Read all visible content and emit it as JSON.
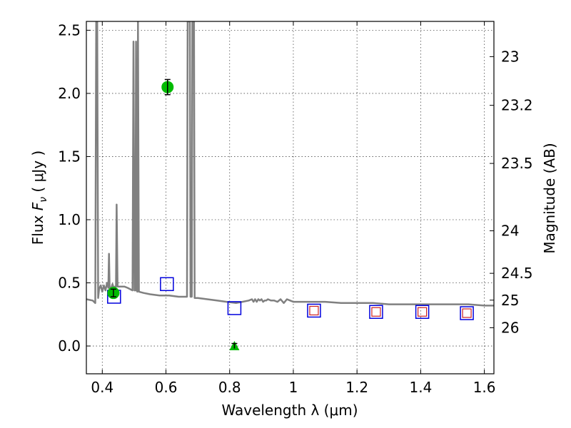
{
  "chart_data": {
    "type": "scatter",
    "title": "",
    "xlabel": "Wavelength  λ (μm)",
    "ylabel": "Flux  F_ν  ( μJy )",
    "ylabel_parts": {
      "pre": "Flux  ",
      "sym": "F",
      "sub": "ν",
      "post": "  ( μJy )"
    },
    "ylabel_right": "Magnitude (AB)",
    "xlim": [
      0.35,
      1.63
    ],
    "ylim": [
      -0.22,
      2.57
    ],
    "grid": true,
    "x_ticks": [
      0.4,
      0.6,
      0.8,
      1.0,
      1.2,
      1.4,
      1.6
    ],
    "x_tick_labels": [
      "0.4",
      "0.6",
      "0.8",
      "1",
      "1.2",
      "1.4",
      "1.6"
    ],
    "y_ticks": [
      0.0,
      0.5,
      1.0,
      1.5,
      2.0,
      2.5
    ],
    "y_tick_labels": [
      "0.0",
      "0.5",
      "1.0",
      "1.5",
      "2.0",
      "2.5"
    ],
    "mag_ticks": [
      23,
      23.2,
      23.5,
      24,
      24.5,
      25,
      26
    ],
    "mag_tick_labels": [
      "23",
      "23.2",
      "23.5",
      "24",
      "24.5",
      "25",
      "26"
    ],
    "colors": {
      "model": "#808080",
      "detection": "#00bb00",
      "blue_box": "#0000dd",
      "red_box": "#cc2020",
      "errorbar": "#000000"
    },
    "series": [
      {
        "kind": "model_sed",
        "points": [
          [
            0.35,
            0.37
          ],
          [
            0.37,
            0.36
          ],
          [
            0.378,
            0.34
          ],
          [
            0.381,
            2.57
          ],
          [
            0.384,
            2.57
          ],
          [
            0.387,
            0.38
          ],
          [
            0.39,
            0.45
          ],
          [
            0.395,
            0.48
          ],
          [
            0.4,
            0.43
          ],
          [
            0.405,
            0.48
          ],
          [
            0.41,
            0.44
          ],
          [
            0.415,
            0.5
          ],
          [
            0.419,
            0.46
          ],
          [
            0.421,
            0.73
          ],
          [
            0.423,
            0.46
          ],
          [
            0.428,
            0.46
          ],
          [
            0.432,
            0.49
          ],
          [
            0.436,
            0.46
          ],
          [
            0.44,
            0.47
          ],
          [
            0.443,
            0.47
          ],
          [
            0.445,
            1.12
          ],
          [
            0.448,
            0.47
          ],
          [
            0.46,
            0.47
          ],
          [
            0.47,
            0.47
          ],
          [
            0.48,
            0.46
          ],
          [
            0.495,
            0.44
          ],
          [
            0.498,
            2.41
          ],
          [
            0.501,
            0.44
          ],
          [
            0.504,
            0.44
          ],
          [
            0.506,
            2.41
          ],
          [
            0.508,
            0.44
          ],
          [
            0.51,
            0.43
          ],
          [
            0.512,
            2.57
          ],
          [
            0.515,
            0.43
          ],
          [
            0.53,
            0.42
          ],
          [
            0.55,
            0.41
          ],
          [
            0.58,
            0.4
          ],
          [
            0.61,
            0.4
          ],
          [
            0.64,
            0.39
          ],
          [
            0.66,
            0.39
          ],
          [
            0.666,
            0.39
          ],
          [
            0.668,
            2.57
          ],
          [
            0.675,
            2.57
          ],
          [
            0.677,
            0.39
          ],
          [
            0.681,
            0.39
          ],
          [
            0.683,
            2.57
          ],
          [
            0.688,
            2.57
          ],
          [
            0.69,
            0.38
          ],
          [
            0.7,
            0.38
          ],
          [
            0.73,
            0.37
          ],
          [
            0.76,
            0.36
          ],
          [
            0.79,
            0.35
          ],
          [
            0.82,
            0.34
          ],
          [
            0.84,
            0.35
          ],
          [
            0.86,
            0.36
          ],
          [
            0.87,
            0.37
          ],
          [
            0.875,
            0.35
          ],
          [
            0.88,
            0.37
          ],
          [
            0.885,
            0.35
          ],
          [
            0.89,
            0.37
          ],
          [
            0.895,
            0.36
          ],
          [
            0.9,
            0.37
          ],
          [
            0.905,
            0.35
          ],
          [
            0.91,
            0.36
          ],
          [
            0.915,
            0.36
          ],
          [
            0.92,
            0.37
          ],
          [
            0.93,
            0.36
          ],
          [
            0.94,
            0.36
          ],
          [
            0.95,
            0.35
          ],
          [
            0.96,
            0.37
          ],
          [
            0.97,
            0.34
          ],
          [
            0.98,
            0.37
          ],
          [
            0.99,
            0.36
          ],
          [
            1.0,
            0.35
          ],
          [
            1.05,
            0.35
          ],
          [
            1.1,
            0.35
          ],
          [
            1.15,
            0.34
          ],
          [
            1.2,
            0.34
          ],
          [
            1.25,
            0.34
          ],
          [
            1.3,
            0.33
          ],
          [
            1.35,
            0.33
          ],
          [
            1.4,
            0.33
          ],
          [
            1.45,
            0.33
          ],
          [
            1.5,
            0.33
          ],
          [
            1.55,
            0.33
          ],
          [
            1.6,
            0.32
          ],
          [
            1.63,
            0.32
          ]
        ]
      },
      {
        "kind": "detections",
        "marker": "circle",
        "points": [
          {
            "x": 0.435,
            "y": 0.42,
            "err": 0.03
          },
          {
            "x": 0.605,
            "y": 2.05,
            "err": 0.06
          }
        ]
      },
      {
        "kind": "upper_limit",
        "marker": "triangle",
        "points": [
          {
            "x": 0.815,
            "y": 0.0,
            "err": 0.02
          }
        ]
      },
      {
        "kind": "model_photometry",
        "marker": "square",
        "points": [
          {
            "x": 0.437,
            "y": 0.39
          },
          {
            "x": 0.603,
            "y": 0.49
          },
          {
            "x": 0.815,
            "y": 0.3
          },
          {
            "x": 1.065,
            "y": 0.28
          },
          {
            "x": 1.26,
            "y": 0.27
          },
          {
            "x": 1.405,
            "y": 0.27
          },
          {
            "x": 1.545,
            "y": 0.26
          }
        ]
      },
      {
        "kind": "nir_points",
        "marker": "small-square",
        "points": [
          {
            "x": 1.065,
            "y": 0.28
          },
          {
            "x": 1.26,
            "y": 0.27
          },
          {
            "x": 1.405,
            "y": 0.27
          },
          {
            "x": 1.545,
            "y": 0.26
          }
        ]
      }
    ]
  }
}
